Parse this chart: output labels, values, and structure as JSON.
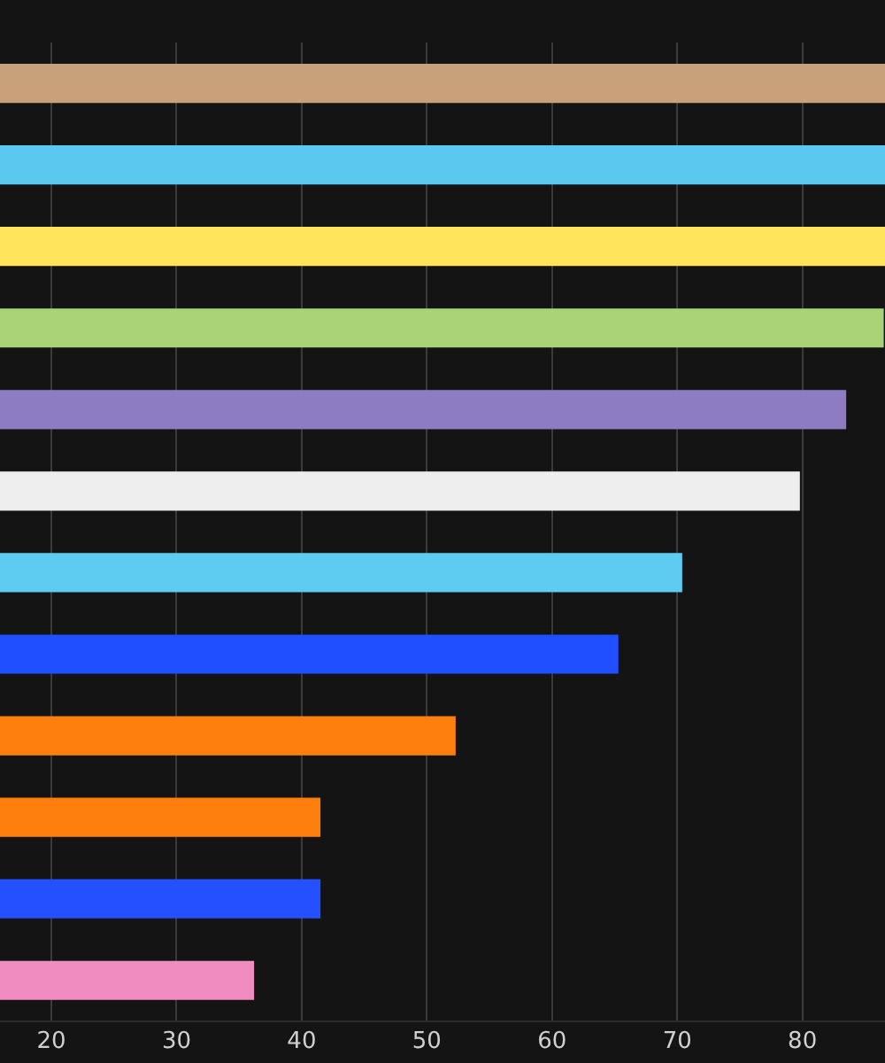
{
  "chart_data": {
    "type": "bar",
    "orientation": "horizontal",
    "categories": [
      null,
      null,
      null,
      null,
      null,
      null,
      null,
      null,
      null,
      null,
      null,
      null
    ],
    "values": [
      86.6,
      86.6,
      86.6,
      86.5,
      83.5,
      79.8,
      70.4,
      65.3,
      52.3,
      41.5,
      41.5,
      36.2
    ],
    "colors": [
      "#c8a07a",
      "#5bc8f0",
      "#ffe45c",
      "#a8d477",
      "#8e7cc3",
      "#eeeeee",
      "#5ecbf0",
      "#1f4fff",
      "#ff7f0e",
      "#ff7f0e",
      "#2450ff",
      "#f08cc0"
    ],
    "xlim": [
      15.9,
      86.6
    ],
    "xticks": [
      20,
      30,
      40,
      50,
      60,
      70,
      80
    ],
    "grid": "x",
    "legend": false
  }
}
